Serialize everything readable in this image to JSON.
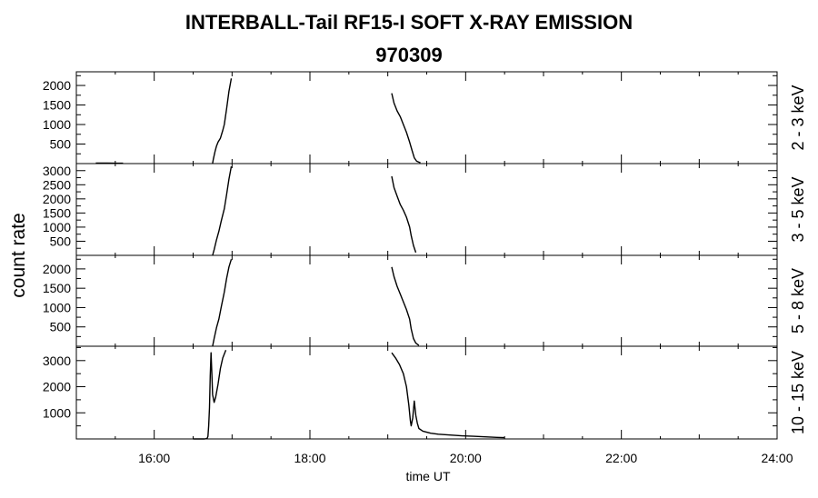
{
  "header": {
    "title": "INTERBALL-Tail RF15-I SOFT X-RAY EMISSION",
    "subtitle": "970309"
  },
  "chart_data": {
    "type": "line",
    "title": "INTERBALL-Tail RF15-I SOFT X-RAY EMISSION",
    "subtitle": "970309",
    "xlabel": "time UT",
    "ylabel": "count rate",
    "x_unit": "hours UT",
    "xlim": [
      15,
      24
    ],
    "xticks": [
      16,
      18,
      20,
      22,
      24
    ],
    "xtick_labels": [
      "16:00",
      "18:00",
      "20:00",
      "22:00",
      "24:00"
    ],
    "grid": false,
    "panels": [
      {
        "channel": "2 - 3 keV",
        "ylim": [
          0,
          2350
        ],
        "yticks": [
          500,
          1000,
          1500,
          2000
        ],
        "segments": [
          [
            [
              15.25,
              12
            ],
            [
              15.4,
              12
            ],
            [
              15.6,
              10
            ]
          ],
          [
            [
              16.75,
              5
            ],
            [
              16.76,
              120
            ],
            [
              16.78,
              300
            ],
            [
              16.8,
              450
            ],
            [
              16.82,
              550
            ],
            [
              16.85,
              650
            ],
            [
              16.88,
              850
            ],
            [
              16.9,
              1000
            ],
            [
              16.93,
              1400
            ],
            [
              16.96,
              1850
            ],
            [
              16.99,
              2180
            ]
          ],
          [
            [
              19.05,
              1800
            ],
            [
              19.08,
              1550
            ],
            [
              19.12,
              1350
            ],
            [
              19.16,
              1200
            ],
            [
              19.2,
              1000
            ],
            [
              19.24,
              800
            ],
            [
              19.28,
              550
            ],
            [
              19.31,
              350
            ],
            [
              19.34,
              150
            ],
            [
              19.37,
              60
            ],
            [
              19.42,
              20
            ]
          ]
        ]
      },
      {
        "channel": "3 - 5 keV",
        "ylim": [
          0,
          3250
        ],
        "yticks": [
          500,
          1000,
          1500,
          2000,
          2500,
          3000
        ],
        "segments": [
          [
            [
              16.75,
              0
            ],
            [
              16.77,
              200
            ],
            [
              16.8,
              550
            ],
            [
              16.83,
              850
            ],
            [
              16.86,
              1200
            ],
            [
              16.9,
              1650
            ],
            [
              16.93,
              2150
            ],
            [
              16.96,
              2700
            ],
            [
              16.99,
              3150
            ]
          ],
          [
            [
              19.05,
              2800
            ],
            [
              19.08,
              2400
            ],
            [
              19.12,
              2100
            ],
            [
              19.16,
              1800
            ],
            [
              19.2,
              1600
            ],
            [
              19.24,
              1350
            ],
            [
              19.28,
              1000
            ],
            [
              19.3,
              700
            ],
            [
              19.33,
              350
            ],
            [
              19.36,
              100
            ]
          ]
        ]
      },
      {
        "channel": "5 - 8 keV",
        "ylim": [
          0,
          2350
        ],
        "yticks": [
          500,
          1000,
          1500,
          2000
        ],
        "segments": [
          [
            [
              16.75,
              0
            ],
            [
              16.77,
              200
            ],
            [
              16.8,
              480
            ],
            [
              16.83,
              700
            ],
            [
              16.86,
              1000
            ],
            [
              16.9,
              1400
            ],
            [
              16.93,
              1750
            ],
            [
              16.96,
              2050
            ],
            [
              16.99,
              2250
            ]
          ],
          [
            [
              19.05,
              2050
            ],
            [
              19.08,
              1800
            ],
            [
              19.12,
              1550
            ],
            [
              19.16,
              1350
            ],
            [
              19.2,
              1150
            ],
            [
              19.24,
              950
            ],
            [
              19.28,
              700
            ],
            [
              19.3,
              450
            ],
            [
              19.33,
              200
            ],
            [
              19.36,
              80
            ],
            [
              19.4,
              20
            ]
          ]
        ]
      },
      {
        "channel": "10 - 15 keV",
        "ylim": [
          0,
          3550
        ],
        "yticks": [
          1000,
          2000,
          3000
        ],
        "segments": [
          [
            [
              16.5,
              0
            ],
            [
              16.65,
              0
            ],
            [
              16.68,
              20
            ],
            [
              16.69,
              100
            ],
            [
              16.7,
              500
            ],
            [
              16.71,
              1200
            ],
            [
              16.72,
              2400
            ],
            [
              16.73,
              3300
            ],
            [
              16.74,
              2500
            ],
            [
              16.75,
              1700
            ],
            [
              16.77,
              1400
            ],
            [
              16.79,
              1600
            ],
            [
              16.82,
              2100
            ],
            [
              16.85,
              2700
            ],
            [
              16.88,
              3100
            ],
            [
              16.92,
              3400
            ]
          ],
          [
            [
              19.05,
              3300
            ],
            [
              19.1,
              3100
            ],
            [
              19.15,
              2850
            ],
            [
              19.2,
              2500
            ],
            [
              19.24,
              2000
            ],
            [
              19.27,
              1300
            ],
            [
              19.29,
              700
            ],
            [
              19.3,
              500
            ],
            [
              19.32,
              800
            ],
            [
              19.34,
              1450
            ],
            [
              19.36,
              900
            ],
            [
              19.38,
              600
            ],
            [
              19.4,
              400
            ],
            [
              19.45,
              300
            ],
            [
              19.55,
              220
            ],
            [
              19.65,
              180
            ],
            [
              19.8,
              150
            ],
            [
              19.95,
              120
            ],
            [
              20.1,
              100
            ],
            [
              20.25,
              80
            ],
            [
              20.4,
              60
            ],
            [
              20.5,
              50
            ]
          ]
        ]
      }
    ]
  },
  "colors": {
    "line": "#000000",
    "background": "#ffffff"
  }
}
